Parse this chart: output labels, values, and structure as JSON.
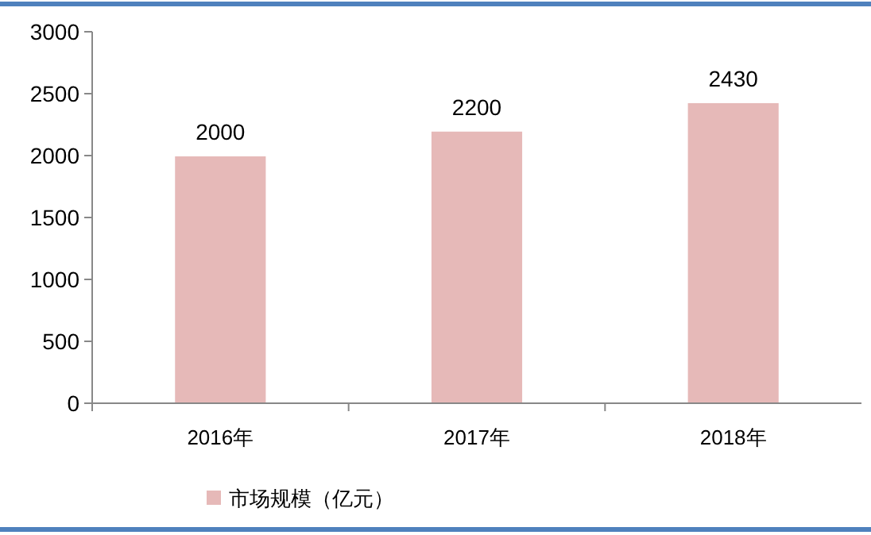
{
  "chart_data": {
    "type": "bar",
    "categories": [
      "2016年",
      "2017年",
      "2018年"
    ],
    "series": [
      {
        "name": "市场规模（亿元）",
        "color": "#e6b9b8",
        "values": [
          2000,
          2200,
          2430
        ]
      }
    ],
    "ylim": [
      0,
      3000
    ],
    "yticks": [
      0,
      500,
      1000,
      1500,
      2000,
      2500,
      3000
    ],
    "grid": false,
    "data_labels": true,
    "legend": "bottom"
  }
}
